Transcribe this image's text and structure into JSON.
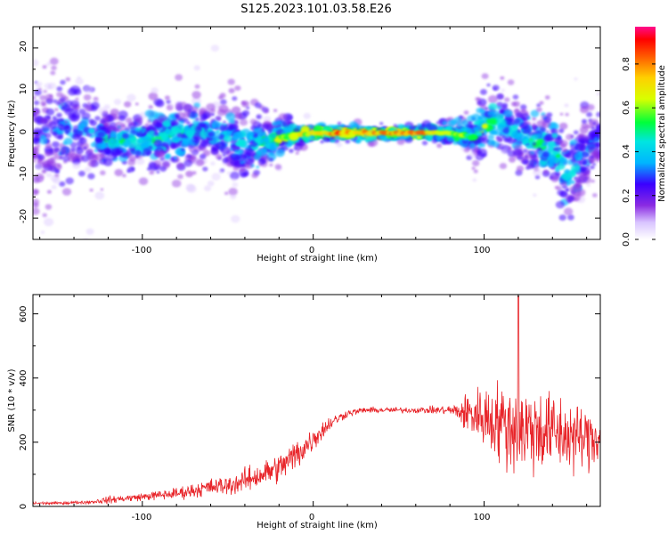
{
  "title": "S125.2023.101.03.58.E26",
  "chart_data": [
    {
      "type": "heatmap",
      "xlabel": "Height of straight line (km)",
      "ylabel": "Frequency (Hz)",
      "xlim": [
        -164,
        168
      ],
      "ylim": [
        -25,
        25
      ],
      "xticks": [
        -100,
        0,
        100
      ],
      "xtick_labels": [
        "-100",
        "0",
        "100"
      ],
      "yticks": [
        -20,
        -10,
        0,
        10,
        20
      ],
      "ytick_labels": [
        "-20",
        "-10",
        "0",
        "10",
        "20"
      ],
      "colorbar": {
        "label": "Normalized spectral amplitude",
        "range": [
          0.0,
          0.97
        ],
        "ticks": [
          0.0,
          0.2,
          0.4,
          0.6,
          0.8
        ],
        "tick_labels": [
          "0.0",
          "0.2",
          "0.4",
          "0.6",
          "0.8"
        ]
      },
      "ridge_profile": {
        "x": [
          -164,
          -150,
          -130,
          -120,
          -100,
          -80,
          -60,
          -40,
          -20,
          0,
          20,
          40,
          60,
          80,
          95,
          100,
          110,
          125,
          140,
          150,
          160,
          168
        ],
        "center_hz": [
          0,
          0,
          0,
          -2,
          -2,
          0,
          1,
          -3,
          -1,
          0,
          0,
          0,
          0,
          0,
          -1,
          2,
          3,
          -1,
          -4,
          -10,
          -4,
          -1
        ],
        "peak_amplitude": [
          0.25,
          0.3,
          0.35,
          0.45,
          0.5,
          0.45,
          0.4,
          0.4,
          0.6,
          0.75,
          0.85,
          0.75,
          0.8,
          0.6,
          0.5,
          0.55,
          0.45,
          0.45,
          0.5,
          0.4,
          0.35,
          0.35
        ],
        "spread_hz": [
          25,
          25,
          20,
          8,
          10,
          12,
          14,
          14,
          6,
          2,
          2,
          2,
          2,
          3,
          8,
          10,
          12,
          12,
          14,
          18,
          16,
          10
        ]
      }
    },
    {
      "type": "line",
      "xlabel": "Height of straight line (km)",
      "ylabel": "SNR (10 * v/v)",
      "xlim": [
        -164,
        168
      ],
      "ylim": [
        0,
        660
      ],
      "xticks": [
        -100,
        0,
        100
      ],
      "xtick_labels": [
        "-100",
        "0",
        "100"
      ],
      "yticks": [
        0,
        200,
        400,
        600
      ],
      "ytick_labels": [
        "0",
        "200",
        "400",
        "600"
      ],
      "series": [
        {
          "color": "#e8252a",
          "x": [
            -164,
            -150,
            -140,
            -130,
            -120,
            -110,
            -100,
            -90,
            -80,
            -70,
            -60,
            -50,
            -40,
            -30,
            -20,
            -10,
            0,
            10,
            20,
            30,
            40,
            50,
            60,
            70,
            80,
            85,
            90,
            100,
            110,
            120,
            130,
            140,
            150,
            160,
            168
          ],
          "baseline": [
            10,
            10,
            12,
            14,
            20,
            25,
            30,
            35,
            40,
            50,
            60,
            65,
            80,
            100,
            120,
            160,
            210,
            260,
            290,
            300,
            300,
            300,
            300,
            300,
            300,
            295,
            290,
            280,
            260,
            240,
            240,
            230,
            220,
            210,
            220
          ],
          "spread": [
            6,
            6,
            6,
            8,
            15,
            15,
            15,
            20,
            25,
            30,
            35,
            40,
            50,
            55,
            60,
            70,
            50,
            30,
            15,
            12,
            12,
            12,
            12,
            15,
            20,
            40,
            90,
            130,
            170,
            200,
            180,
            170,
            150,
            130,
            120
          ],
          "peak_x": 120,
          "peak_y": 655
        }
      ]
    }
  ]
}
